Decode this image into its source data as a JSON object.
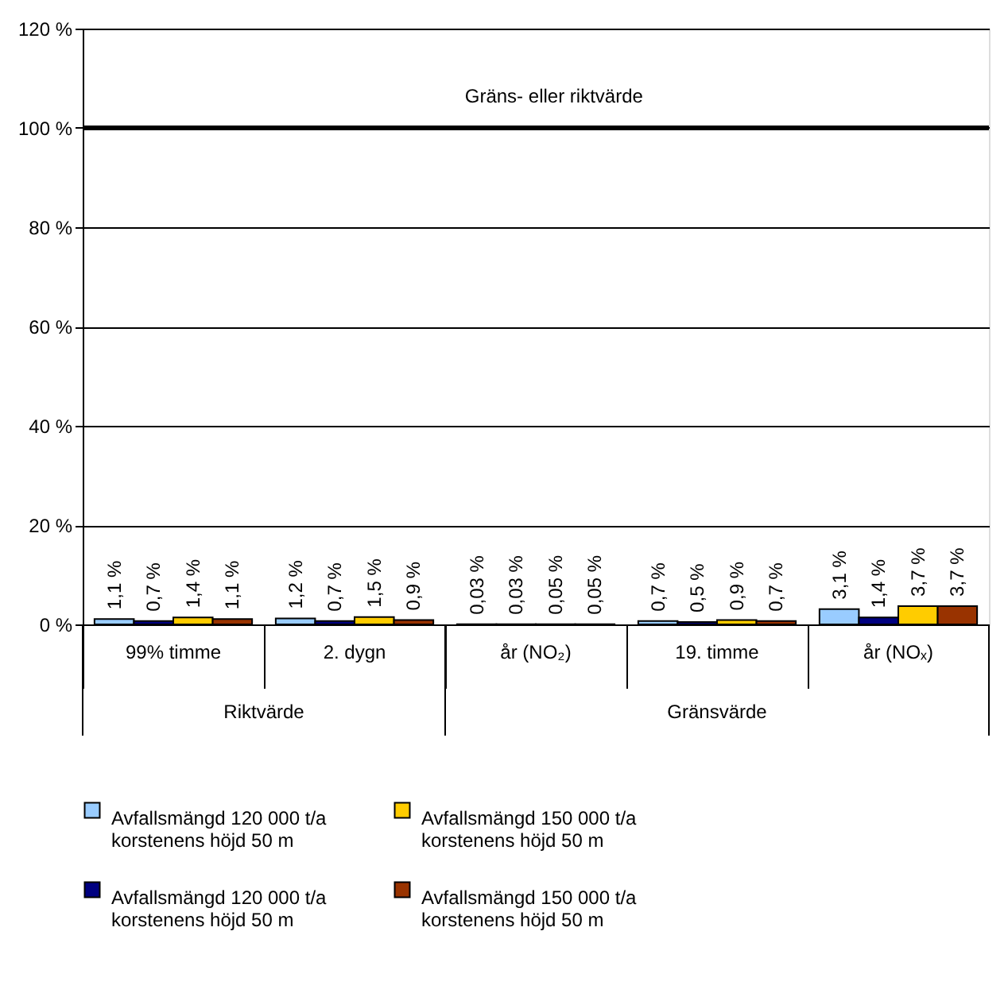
{
  "chart_data": {
    "type": "bar",
    "categories": [
      "99% timme",
      "2. dygn",
      "år (NO₂)",
      "19. timme",
      "år (NOₓ)"
    ],
    "series": [
      {
        "name": "Avfallsmängd 120 000 t/a\nkorstenens höjd 50 m",
        "color": "#99ccff",
        "values": [
          1.1,
          1.2,
          0.03,
          0.7,
          3.1
        ],
        "value_labels": [
          "1,1 %",
          "1,2 %",
          "0,03 %",
          "0,7 %",
          "3,1 %"
        ]
      },
      {
        "name": "Avfallsmängd 120 000 t/a\nkorstenens höjd 50 m",
        "color": "#000080",
        "values": [
          0.7,
          0.7,
          0.03,
          0.5,
          1.4
        ],
        "value_labels": [
          "0,7 %",
          "0,7 %",
          "0,03 %",
          "0,5 %",
          "1,4 %"
        ]
      },
      {
        "name": "Avfallsmängd 150 000 t/a\nkorstenens höjd 50 m",
        "color": "#ffcc00",
        "values": [
          1.4,
          1.5,
          0.05,
          0.9,
          3.7
        ],
        "value_labels": [
          "1,4 %",
          "1,5 %",
          "0,05 %",
          "0,9 %",
          "3,7 %"
        ]
      },
      {
        "name": "Avfallsmängd 150 000 t/a\nkorstenens höjd 50 m",
        "color": "#993300",
        "values": [
          1.1,
          0.9,
          0.05,
          0.7,
          3.7
        ],
        "value_labels": [
          "1,1 %",
          "0,9 %",
          "0,05 %",
          "0,7 %",
          "3,7 %"
        ]
      }
    ],
    "ylim": [
      0,
      120
    ],
    "yticks": [
      {
        "value": 0,
        "label": "0 %"
      },
      {
        "value": 20,
        "label": "20 %"
      },
      {
        "value": 40,
        "label": "40 %"
      },
      {
        "value": 60,
        "label": "60 %"
      },
      {
        "value": 80,
        "label": "80 %"
      },
      {
        "value": 100,
        "label": "100 %"
      },
      {
        "value": 120,
        "label": "120 %"
      }
    ],
    "ref_lines": [
      {
        "axis": "y",
        "value": 100,
        "label": "Gräns- eller riktvärde"
      }
    ],
    "annotations": [
      "Riktvärde",
      "Gränsvärde"
    ],
    "grid": "y",
    "legend": "bottom"
  }
}
